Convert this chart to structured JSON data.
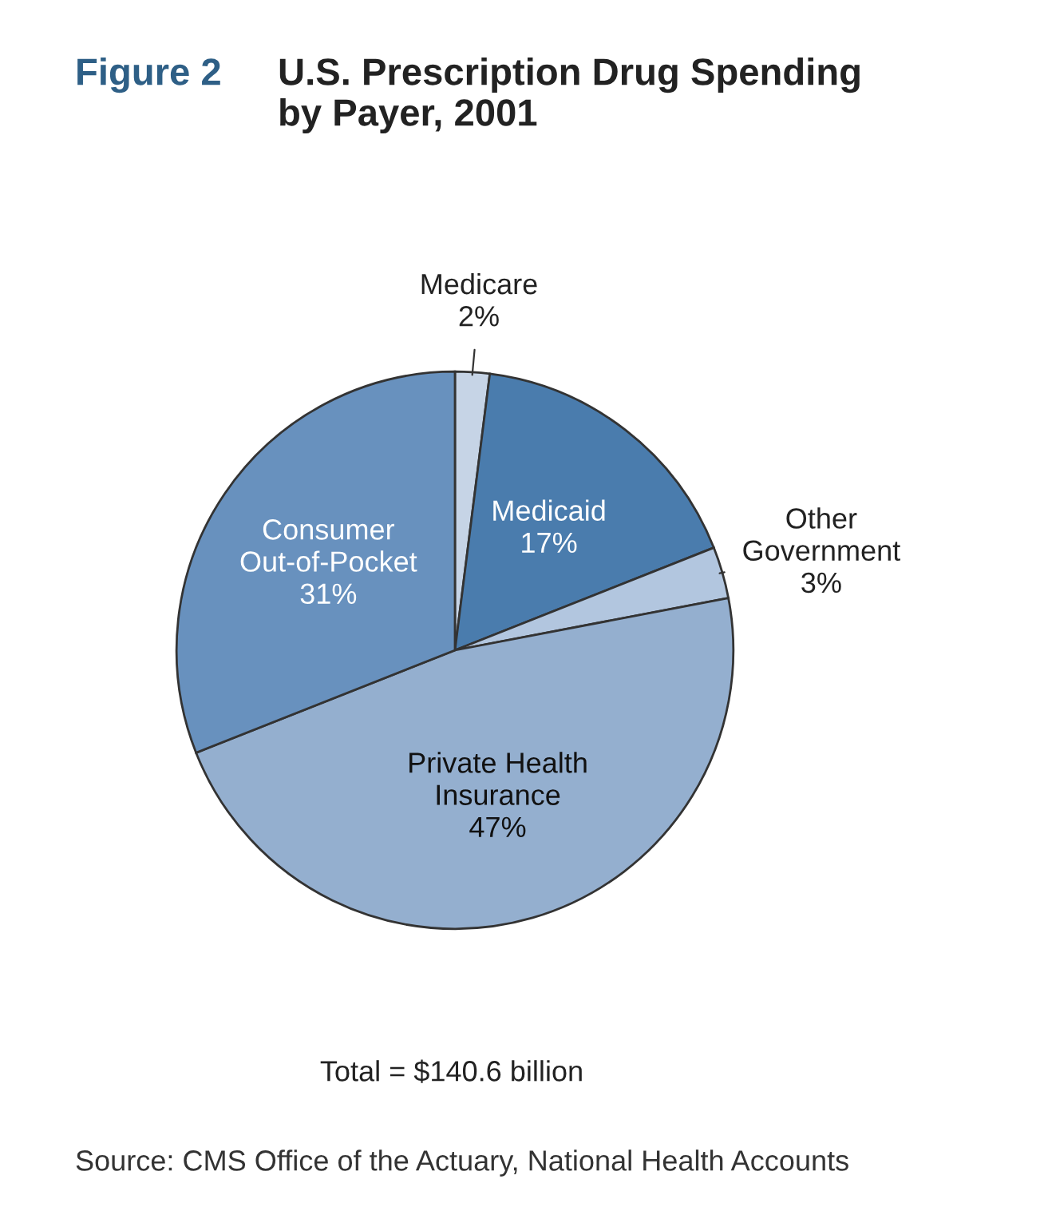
{
  "chart_data": {
    "type": "pie",
    "title": "U.S. Prescription Drug Spending\nby Payer, 2001",
    "categories": [
      "Medicare",
      "Medicaid",
      "Other\nGovernment",
      "Private Health\nInsurance",
      "Consumer\nOut-of-Pocket"
    ],
    "values": [
      2,
      17,
      3,
      47,
      31
    ],
    "value_labels": [
      "2%",
      "17%",
      "3%",
      "47%",
      "31%"
    ],
    "colors": [
      "#c6d4e6",
      "#4a7cad",
      "#b2c6df",
      "#94afcf",
      "#6891be"
    ],
    "annotations": [
      "Figure 2",
      "Total = $140.6 billion",
      "Source: CMS Office of the Actuary, National Health Accounts"
    ]
  }
}
